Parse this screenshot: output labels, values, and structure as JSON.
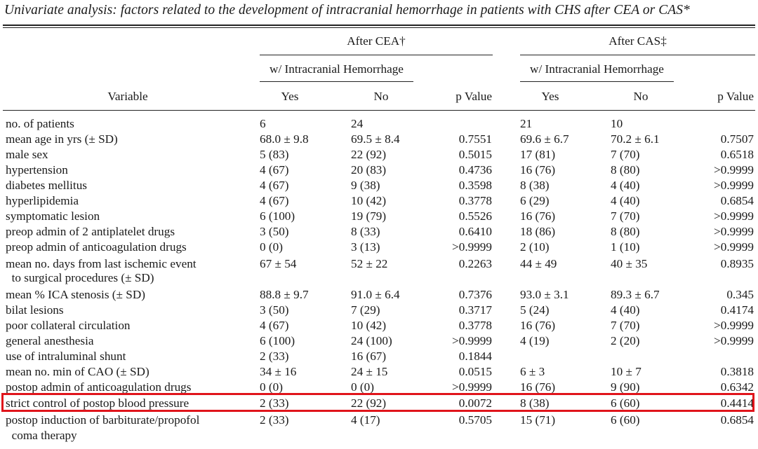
{
  "caption": "Univariate analysis: factors related to the development of intracranial hemorrhage in patients with CHS after CEA or CAS*",
  "header": {
    "group_cea": "After CEA†",
    "group_cas": "After CAS‡",
    "subgroup": "w/ Intracranial Hemorrhage",
    "variable": "Variable",
    "yes": "Yes",
    "no": "No",
    "p_value": "p Value"
  },
  "rows": [
    {
      "variable": "no. of patients",
      "cea_yes": "6",
      "cea_no": "24",
      "cea_p": "",
      "cas_yes": "21",
      "cas_no": "10",
      "cas_p": ""
    },
    {
      "variable": "mean age in yrs (± SD)",
      "cea_yes": "68.0 ± 9.8",
      "cea_no": "69.5 ± 8.4",
      "cea_p": "0.7551",
      "cas_yes": "69.6 ± 6.7",
      "cas_no": "70.2 ± 6.1",
      "cas_p": "0.7507"
    },
    {
      "variable": "male sex",
      "cea_yes": "5 (83)",
      "cea_no": "22 (92)",
      "cea_p": "0.5015",
      "cas_yes": "17 (81)",
      "cas_no": "7 (70)",
      "cas_p": "0.6518"
    },
    {
      "variable": "hypertension",
      "cea_yes": "4 (67)",
      "cea_no": "20 (83)",
      "cea_p": "0.4736",
      "cas_yes": "16 (76)",
      "cas_no": "8 (80)",
      "cas_p": ">0.9999"
    },
    {
      "variable": "diabetes mellitus",
      "cea_yes": "4 (67)",
      "cea_no": "9 (38)",
      "cea_p": "0.3598",
      "cas_yes": "8 (38)",
      "cas_no": "4 (40)",
      "cas_p": ">0.9999"
    },
    {
      "variable": "hyperlipidemia",
      "cea_yes": "4 (67)",
      "cea_no": "10 (42)",
      "cea_p": "0.3778",
      "cas_yes": "6 (29)",
      "cas_no": "4 (40)",
      "cas_p": "0.6854"
    },
    {
      "variable": "symptomatic lesion",
      "cea_yes": "6 (100)",
      "cea_no": "19 (79)",
      "cea_p": "0.5526",
      "cas_yes": "16 (76)",
      "cas_no": "7 (70)",
      "cas_p": ">0.9999"
    },
    {
      "variable": "preop admin of 2 antiplatelet drugs",
      "cea_yes": "3 (50)",
      "cea_no": "8 (33)",
      "cea_p": "0.6410",
      "cas_yes": "18 (86)",
      "cas_no": "8 (80)",
      "cas_p": ">0.9999"
    },
    {
      "variable": "preop admin of anticoagulation drugs",
      "cea_yes": "0 (0)",
      "cea_no": "3 (13)",
      "cea_p": ">0.9999",
      "cas_yes": "2 (10)",
      "cas_no": "1 (10)",
      "cas_p": ">0.9999"
    },
    {
      "variable": "mean no. days from last ischemic event",
      "cea_yes": "67 ± 54",
      "cea_no": "52 ± 22",
      "cea_p": "0.2263",
      "cas_yes": "44 ± 49",
      "cas_no": "40 ± 35",
      "cas_p": "0.8935"
    },
    {
      "variable": "  to surgical procedures (± SD)",
      "cea_yes": "",
      "cea_no": "",
      "cea_p": "",
      "cas_yes": "",
      "cas_no": "",
      "cas_p": ""
    },
    {
      "variable": "mean % ICA stenosis (± SD)",
      "cea_yes": "88.8 ± 9.7",
      "cea_no": "91.0 ± 6.4",
      "cea_p": "0.7376",
      "cas_yes": "93.0 ± 3.1",
      "cas_no": "89.3 ± 6.7",
      "cas_p": "0.345"
    },
    {
      "variable": "bilat lesions",
      "cea_yes": "3 (50)",
      "cea_no": "7 (29)",
      "cea_p": "0.3717",
      "cas_yes": "5 (24)",
      "cas_no": "4 (40)",
      "cas_p": "0.4174"
    },
    {
      "variable": "poor collateral circulation",
      "cea_yes": "4 (67)",
      "cea_no": "10 (42)",
      "cea_p": "0.3778",
      "cas_yes": "16 (76)",
      "cas_no": "7 (70)",
      "cas_p": ">0.9999"
    },
    {
      "variable": "general anesthesia",
      "cea_yes": "6 (100)",
      "cea_no": "24 (100)",
      "cea_p": ">0.9999",
      "cas_yes": "4 (19)",
      "cas_no": "2 (20)",
      "cas_p": ">0.9999"
    },
    {
      "variable": "use of intraluminal shunt",
      "cea_yes": "2 (33)",
      "cea_no": "16 (67)",
      "cea_p": "0.1844",
      "cas_yes": "",
      "cas_no": "",
      "cas_p": ""
    },
    {
      "variable": "mean no. min of CAO (± SD)",
      "cea_yes": "34 ± 16",
      "cea_no": "24 ± 15",
      "cea_p": "0.0515",
      "cas_yes": "6 ± 3",
      "cas_no": "10 ± 7",
      "cas_p": "0.3818"
    },
    {
      "variable": "postop admin of anticoagulation drugs",
      "cea_yes": "0 (0)",
      "cea_no": "0 (0)",
      "cea_p": ">0.9999",
      "cas_yes": "16 (76)",
      "cas_no": "9 (90)",
      "cas_p": "0.6342"
    },
    {
      "variable": "strict control of postop blood pressure",
      "cea_yes": "2 (33)",
      "cea_no": "22 (92)",
      "cea_p": "0.0072",
      "cas_yes": "8 (38)",
      "cas_no": "6 (60)",
      "cas_p": "0.4414"
    },
    {
      "variable": "postop induction of barbiturate/propofol",
      "cea_yes": "2 (33)",
      "cea_no": "4 (17)",
      "cea_p": "0.5705",
      "cas_yes": "15 (71)",
      "cas_no": "6 (60)",
      "cas_p": "0.6854"
    },
    {
      "variable": "  coma therapy",
      "cea_yes": "",
      "cea_no": "",
      "cea_p": "",
      "cas_yes": "",
      "cas_no": "",
      "cas_p": ""
    }
  ]
}
